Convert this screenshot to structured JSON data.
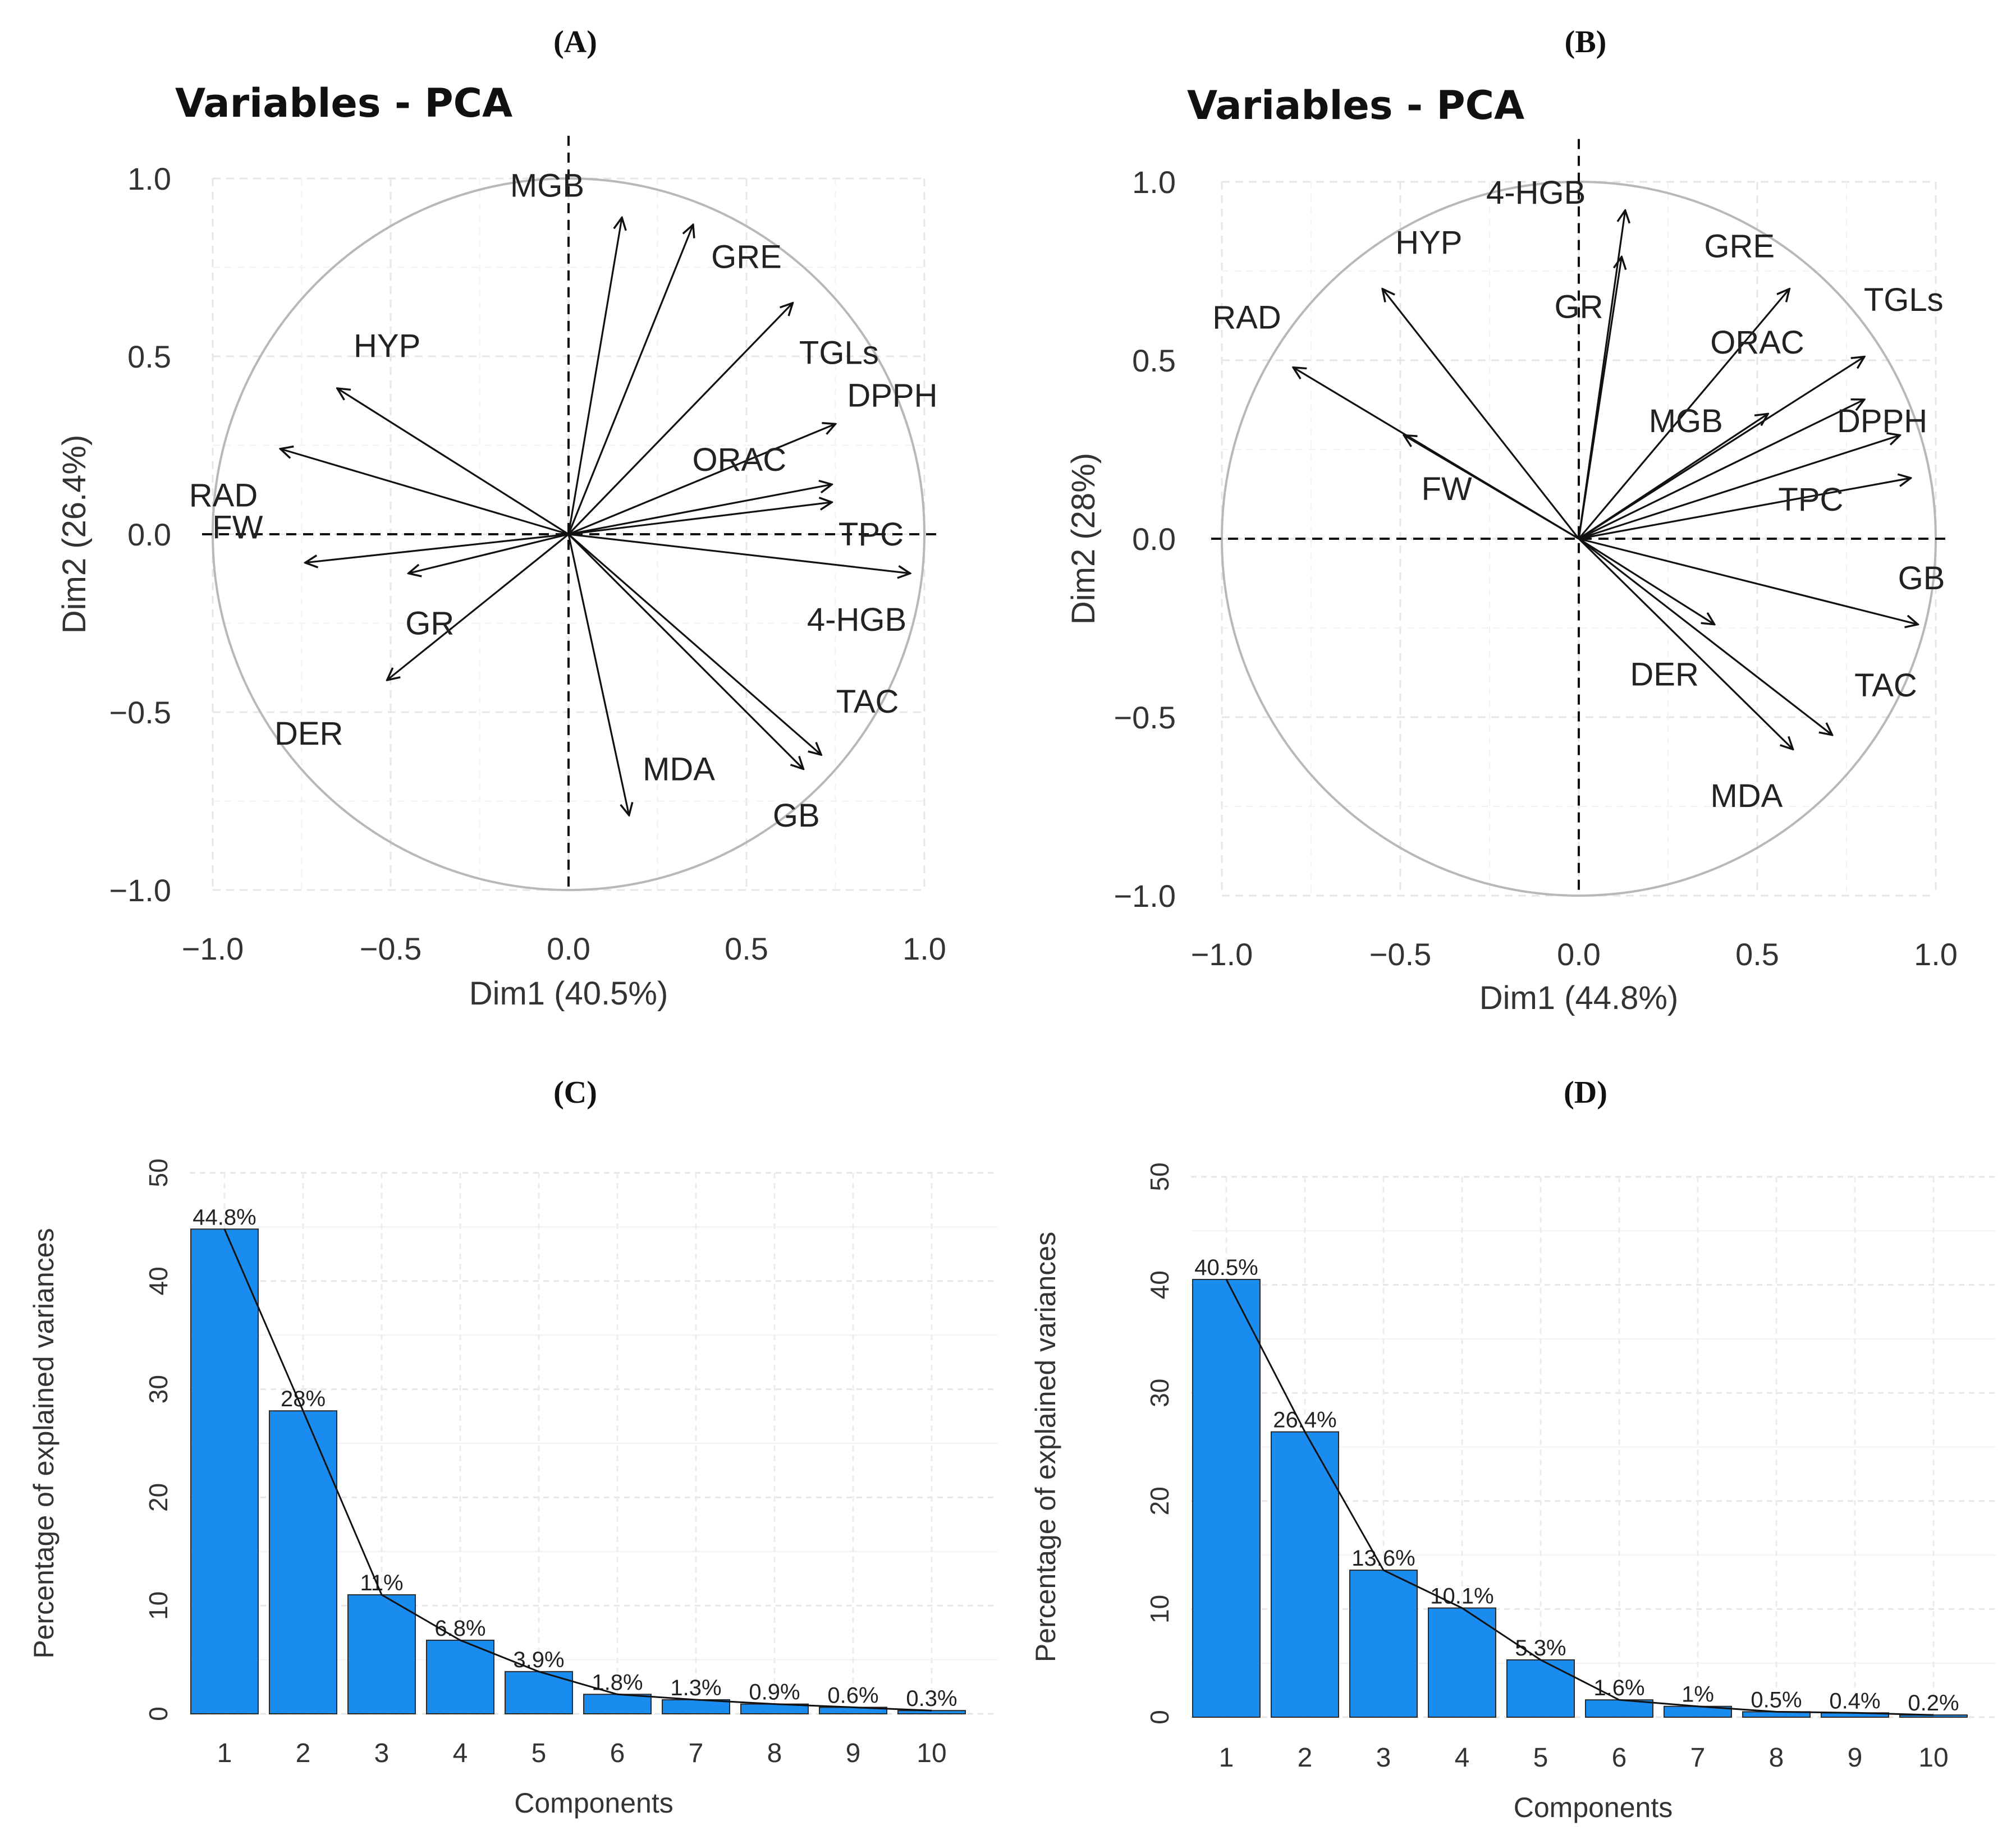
{
  "figure": {
    "panels": [
      "A",
      "B",
      "C",
      "D"
    ]
  },
  "chart_data": [
    {
      "id": "A",
      "type": "scatter",
      "subtype": "pca-variable-correlation-circle",
      "panel_label": "(A)",
      "title": "Variables - PCA",
      "xlabel": "Dim1 (40.5%)",
      "ylabel": "Dim2 (26.4%)",
      "xlim": [
        -1.0,
        1.0
      ],
      "ylim": [
        -1.0,
        1.0
      ],
      "xticks": [
        "−1.0",
        "−0.5",
        "0.0",
        "0.5",
        "1.0"
      ],
      "yticks": [
        "−1.0",
        "−0.5",
        "0.0",
        "0.5",
        "1.0"
      ],
      "grid": true,
      "variables": [
        {
          "name": "MGB",
          "x": 0.15,
          "y": 0.89,
          "lx": -0.06,
          "ly": 0.98
        },
        {
          "name": "GRE",
          "x": 0.35,
          "y": 0.87,
          "lx": 0.5,
          "ly": 0.78
        },
        {
          "name": "TGLs",
          "x": 0.63,
          "y": 0.65,
          "lx": 0.76,
          "ly": 0.51
        },
        {
          "name": "DPPH",
          "x": 0.75,
          "y": 0.31,
          "lx": 0.91,
          "ly": 0.39
        },
        {
          "name": "ORAC",
          "x": 0.74,
          "y": 0.14,
          "lx": 0.48,
          "ly": 0.21
        },
        {
          "name": "TPC",
          "x": 0.74,
          "y": 0.09,
          "lx": 0.85,
          "ly": 0.0
        },
        {
          "name": "4-HGB",
          "x": 0.96,
          "y": -0.11,
          "lx": 0.81,
          "ly": -0.24
        },
        {
          "name": "TAC",
          "x": 0.71,
          "y": -0.62,
          "lx": 0.84,
          "ly": -0.47
        },
        {
          "name": "GB",
          "x": 0.66,
          "y": -0.66,
          "lx": 0.64,
          "ly": -0.79
        },
        {
          "name": "MDA",
          "x": 0.17,
          "y": -0.79,
          "lx": 0.31,
          "ly": -0.66
        },
        {
          "name": "DER",
          "x": -0.51,
          "y": -0.41,
          "lx": -0.73,
          "ly": -0.56
        },
        {
          "name": "GR",
          "x": -0.45,
          "y": -0.11,
          "lx": -0.39,
          "ly": -0.25
        },
        {
          "name": "FW",
          "x": -0.74,
          "y": -0.08,
          "lx": -0.93,
          "ly": 0.02
        },
        {
          "name": "RAD",
          "x": -0.81,
          "y": 0.24,
          "lx": -0.97,
          "ly": 0.11
        },
        {
          "name": "HYP",
          "x": -0.65,
          "y": 0.41,
          "lx": -0.51,
          "ly": 0.53
        }
      ]
    },
    {
      "id": "B",
      "type": "scatter",
      "subtype": "pca-variable-correlation-circle",
      "panel_label": "(B)",
      "title": "Variables - PCA",
      "xlabel": "Dim1 (44.8%)",
      "ylabel": "Dim2 (28%)",
      "xlim": [
        -1.0,
        1.0
      ],
      "ylim": [
        -1.0,
        1.0
      ],
      "xticks": [
        "−1.0",
        "−0.5",
        "0.0",
        "0.5",
        "1.0"
      ],
      "yticks": [
        "−1.0",
        "−0.5",
        "0.0",
        "0.5",
        "1.0"
      ],
      "grid": true,
      "variables": [
        {
          "name": "4-HGB",
          "x": 0.13,
          "y": 0.92,
          "lx": -0.12,
          "ly": 0.97
        },
        {
          "name": "GR",
          "x": 0.12,
          "y": 0.79,
          "lx": 0.0,
          "ly": 0.65
        },
        {
          "name": "GRE",
          "x": 0.59,
          "y": 0.7,
          "lx": 0.45,
          "ly": 0.82
        },
        {
          "name": "TGLs",
          "x": 0.8,
          "y": 0.51,
          "lx": 0.91,
          "ly": 0.67
        },
        {
          "name": "ORAC",
          "x": 0.8,
          "y": 0.39,
          "lx": 0.5,
          "ly": 0.55
        },
        {
          "name": "MGB",
          "x": 0.53,
          "y": 0.35,
          "lx": 0.3,
          "ly": 0.33
        },
        {
          "name": "DPPH",
          "x": 0.9,
          "y": 0.29,
          "lx": 0.85,
          "ly": 0.33
        },
        {
          "name": "TPC",
          "x": 0.93,
          "y": 0.17,
          "lx": 0.65,
          "ly": 0.11
        },
        {
          "name": "GB",
          "x": 0.95,
          "y": -0.24,
          "lx": 0.96,
          "ly": -0.11
        },
        {
          "name": "TAC",
          "x": 0.71,
          "y": -0.55,
          "lx": 0.86,
          "ly": -0.41
        },
        {
          "name": "MDA",
          "x": 0.6,
          "y": -0.59,
          "lx": 0.47,
          "ly": -0.72
        },
        {
          "name": "DER",
          "x": 0.38,
          "y": -0.24,
          "lx": 0.24,
          "ly": -0.38
        },
        {
          "name": "FW",
          "x": -0.49,
          "y": 0.29,
          "lx": -0.37,
          "ly": 0.14
        },
        {
          "name": "RAD",
          "x": -0.8,
          "y": 0.48,
          "lx": -0.93,
          "ly": 0.62
        },
        {
          "name": "HYP",
          "x": -0.55,
          "y": 0.7,
          "lx": -0.42,
          "ly": 0.83
        }
      ]
    },
    {
      "id": "C",
      "type": "bar",
      "subtype": "scree-plot",
      "panel_label": "(C)",
      "xlabel": "Components",
      "ylabel": "Percentage of explained variances",
      "ylim": [
        0,
        50
      ],
      "yticks": [
        "0",
        "10",
        "20",
        "30",
        "40",
        "50"
      ],
      "categories": [
        "1",
        "2",
        "3",
        "4",
        "5",
        "6",
        "7",
        "8",
        "9",
        "10"
      ],
      "values": [
        44.8,
        28,
        11,
        6.8,
        3.9,
        1.8,
        1.3,
        0.9,
        0.6,
        0.3
      ],
      "value_labels": [
        "44.8%",
        "28%",
        "11%",
        "6.8%",
        "3.9%",
        "1.8%",
        "1.3%",
        "0.9%",
        "0.6%",
        "0.3%"
      ],
      "bar_color": "#1a8cef",
      "grid": true
    },
    {
      "id": "D",
      "type": "bar",
      "subtype": "scree-plot",
      "panel_label": "(D)",
      "xlabel": "Components",
      "ylabel": "Percentage of explained variances",
      "ylim": [
        0,
        50
      ],
      "yticks": [
        "0",
        "10",
        "20",
        "30",
        "40",
        "50"
      ],
      "categories": [
        "1",
        "2",
        "3",
        "4",
        "5",
        "6",
        "7",
        "8",
        "9",
        "10"
      ],
      "values": [
        40.5,
        26.4,
        13.6,
        10.1,
        5.3,
        1.6,
        1,
        0.5,
        0.4,
        0.2
      ],
      "value_labels": [
        "40.5%",
        "26.4%",
        "13.6%",
        "10.1%",
        "5.3%",
        "1.6%",
        "1%",
        "0.5%",
        "0.4%",
        "0.2%"
      ],
      "bar_color": "#1a8cef",
      "grid": true
    }
  ]
}
